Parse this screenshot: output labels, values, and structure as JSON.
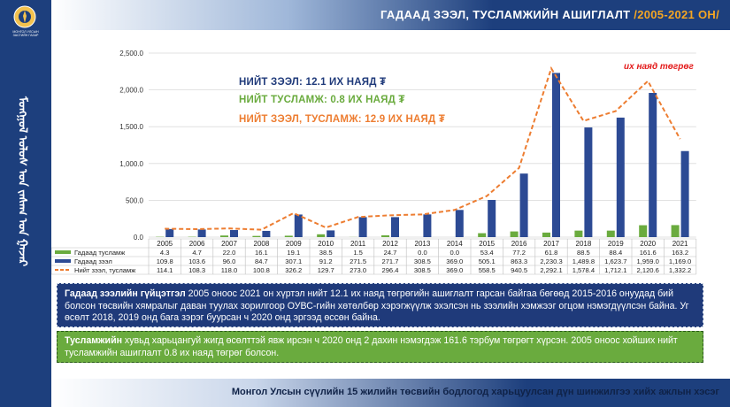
{
  "header": {
    "title_main": "ГАДААД ЗЭЭЛ, ТУСЛАМЖИЙН АШИГЛАЛТ ",
    "title_years": "/2005-2021 ОН/"
  },
  "sidebar": {
    "emblem_text": "МОНГОЛ УЛСЫН\nЗАСГИЙН ГАЗАР",
    "vertical_text": "ᠮᠣᠩᠭᠣᠯ ᠤᠯᠤᠰ ᠤᠨ ᠵᠠᠰᠠᠭ ᠤᠨ ᠭᠠᠵᠠᠷ"
  },
  "annotations": {
    "total_loan": "НИЙТ ЗЭЭЛ: 12.1 ИХ НАЯД ₮",
    "total_aid": "НИЙТ ТУСЛАМЖ: 0.8 ИХ НАЯД ₮",
    "total_both": "НИЙТ ЗЭЭЛ, ТУСЛАМЖ: 12.9 ИХ НАЯД ₮",
    "unit_note": "их наяд төгрөг"
  },
  "colors": {
    "aid": "#6aab3e",
    "loan": "#2c4a94",
    "total": "#ed7d31",
    "navy": "#1d3f7d"
  },
  "chart_data": {
    "type": "bar",
    "categories": [
      "2005",
      "2006",
      "2007",
      "2008",
      "2009",
      "2010",
      "2011",
      "2012",
      "2013",
      "2014",
      "2015",
      "2016",
      "2017",
      "2018",
      "2019",
      "2020",
      "2021"
    ],
    "series": [
      {
        "name": "Гадаад тусламж",
        "type": "bar",
        "color": "#6aab3e",
        "values": [
          4.3,
          4.7,
          22.0,
          16.1,
          19.1,
          38.5,
          1.5,
          24.7,
          0.0,
          0.0,
          53.4,
          77.2,
          61.8,
          88.5,
          88.4,
          161.6,
          163.2
        ],
        "labels": [
          "4.3",
          "4.7",
          "22.0",
          "16.1",
          "19.1",
          "38.5",
          "1.5",
          "24.7",
          "0.0",
          "0.0",
          "53.4",
          "77.2",
          "61.8",
          "88.5",
          "88.4",
          "161.6",
          "163.2"
        ]
      },
      {
        "name": "Гадаад зээл",
        "type": "bar",
        "color": "#2c4a94",
        "values": [
          109.8,
          103.6,
          96.0,
          84.7,
          307.1,
          91.2,
          271.5,
          271.7,
          308.5,
          369.0,
          505.1,
          863.3,
          2230.3,
          1489.8,
          1623.7,
          1959.0,
          1169.0
        ],
        "labels": [
          "109.8",
          "103.6",
          "96.0",
          "84.7",
          "307.1",
          "91.2",
          "271.5",
          "271.7",
          "308.5",
          "369.0",
          "505.1",
          "863.3",
          "2,230.3",
          "1,489.8",
          "1,623.7",
          "1,959.0",
          "1,169.0"
        ]
      },
      {
        "name": "Нийт зээл, тусламж",
        "type": "line",
        "color": "#ed7d31",
        "values": [
          114.1,
          108.3,
          118.0,
          100.8,
          326.2,
          129.7,
          273.0,
          296.4,
          308.5,
          369.0,
          558.5,
          940.5,
          2292.1,
          1578.4,
          1712.1,
          2120.6,
          1332.2
        ],
        "labels": [
          "114.1",
          "108.3",
          "118.0",
          "100.8",
          "326.2",
          "129.7",
          "273.0",
          "296.4",
          "308.5",
          "369.0",
          "558.5",
          "940.5",
          "2,292.1",
          "1,578.4",
          "1,712.1",
          "2,120.6",
          "1,332.2"
        ]
      }
    ],
    "yticks": [
      "0.0",
      "500.0",
      "1,000.0",
      "1,500.0",
      "2,000.0",
      "2,500.0"
    ],
    "ylim": [
      0,
      2500
    ],
    "grid": true,
    "legend": "data-table"
  },
  "text_boxes": {
    "box1_bold": "Гадаад зээлийн гүйцэтгэл",
    "box1_text": " 2005 оноос 2021 он хүртэл нийт 12.1 их наяд төгрөгийн ашиглалт гарсан байгаа бөгөөд 2015-2016 онуудад бий болсон төсвийн хямралыг даван туулах зорилгоор ОУВС-гийн хөтөлбөр хэрэгжүүлж эхэлсэн нь зээлийн хэмжээг огцом нэмэгдүүлсэн байна. Уг өсөлт 2018, 2019 онд бага зэрэг буурсан ч 2020 онд эргээд өссөн байна.",
    "box2_bold": "Тусламжийн",
    "box2_text": " хувьд харьцангуй жигд өсөлттэй явж ирсэн ч 2020 онд 2 дахин нэмэгдэж 161.6 тэрбум төгрөгт хүрсэн. 2005 оноос хойших нийт тусламжийн ашиглалт 0.8 их наяд төгрөг болсон."
  },
  "footer": {
    "text": "Монгол Улсын сүүлийн 15 жилийн төсвийн бодлогод харьцуулсан дүн шинжилгээ хийх ажлын хэсэг"
  }
}
